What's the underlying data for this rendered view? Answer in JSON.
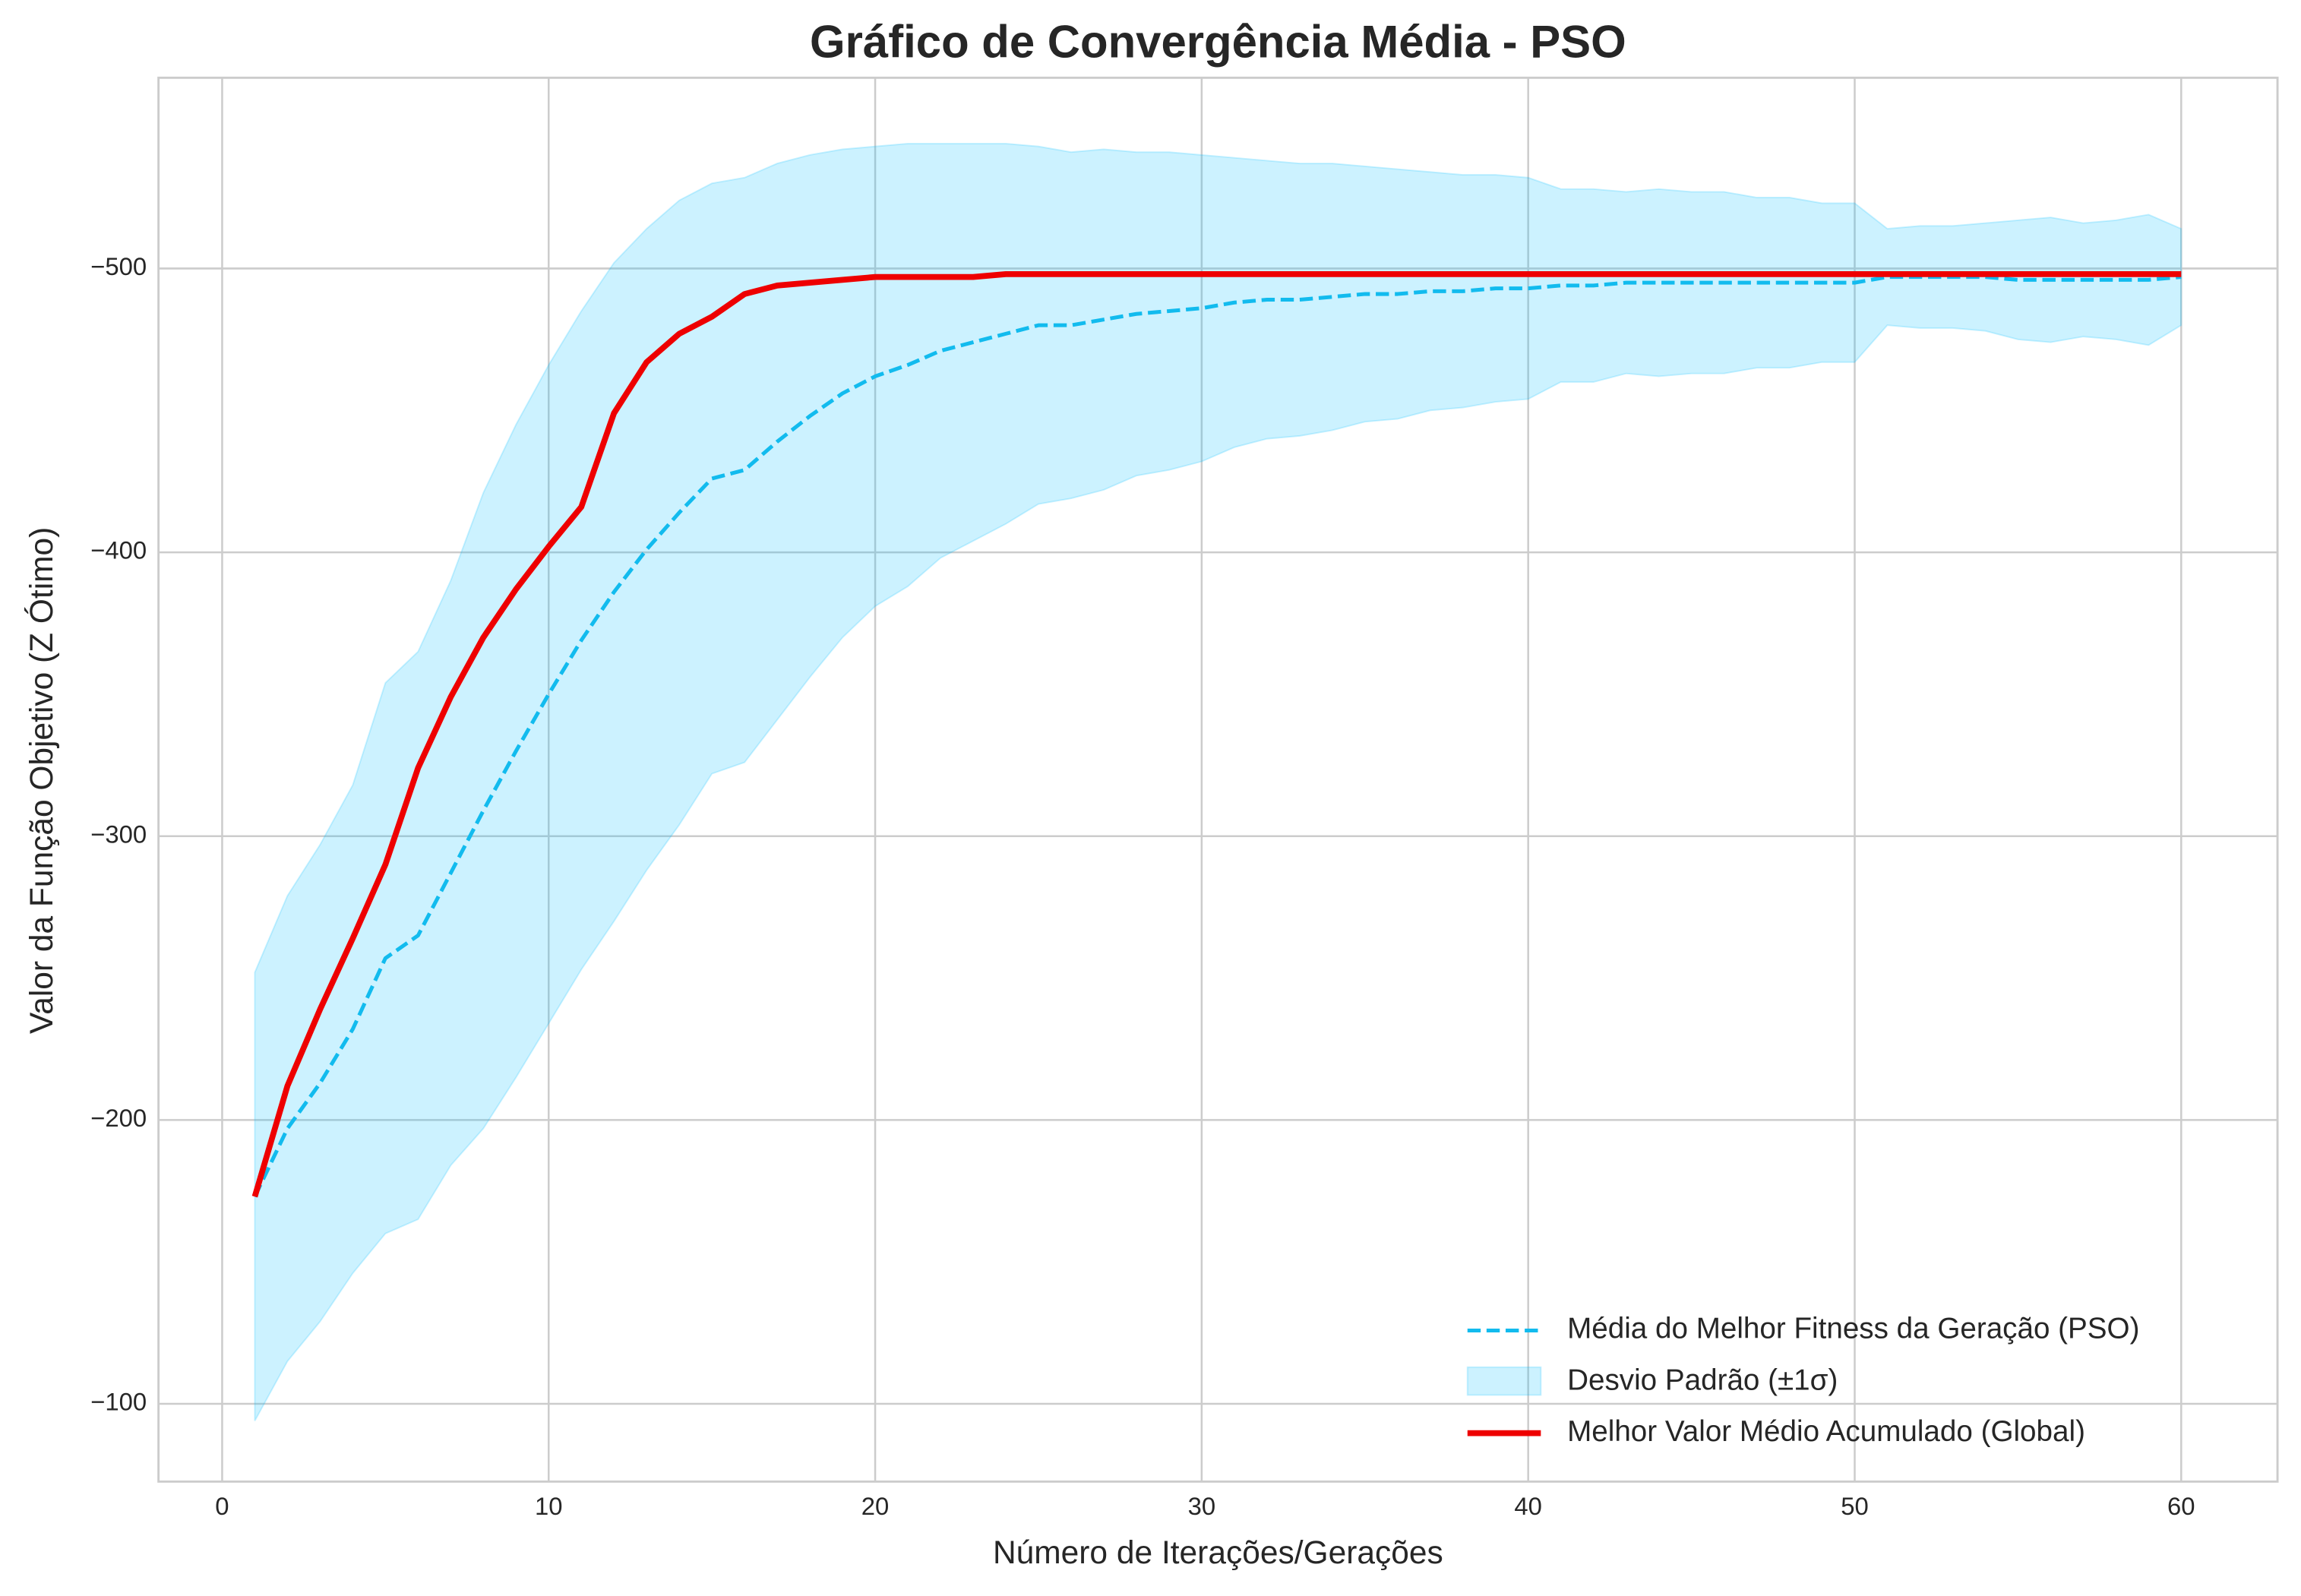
{
  "chart_data": {
    "type": "line",
    "title": "Gráfico de Convergência Média - PSO",
    "x_label": "Número de Iterações/Gerações",
    "y_label": "Valor da Função Objetivo (Z Ótimo)",
    "x": [
      1,
      2,
      3,
      4,
      5,
      6,
      7,
      8,
      9,
      10,
      11,
      12,
      13,
      14,
      15,
      16,
      17,
      18,
      19,
      20,
      21,
      22,
      23,
      24,
      25,
      26,
      27,
      28,
      29,
      30,
      31,
      32,
      33,
      34,
      35,
      36,
      37,
      38,
      39,
      40,
      41,
      42,
      43,
      44,
      45,
      46,
      47,
      48,
      49,
      50,
      51,
      52,
      53,
      54,
      55,
      56,
      57,
      58,
      59,
      60
    ],
    "series": [
      {
        "name": "Média do Melhor Fitness da Geração (PSO)",
        "color": "#12bbee",
        "dashed": true,
        "values": [
          -173,
          -197,
          -213,
          -232,
          -257,
          -265,
          -287,
          -309,
          -330,
          -350,
          -369,
          -386,
          -401,
          -414,
          -426,
          -429,
          -439,
          -448,
          -456,
          -462,
          -466,
          -471,
          -474,
          -477,
          -480,
          -480,
          -482,
          -484,
          -485,
          -486,
          -488,
          -489,
          -489,
          -490,
          -491,
          -491,
          -492,
          -492,
          -493,
          -493,
          -494,
          -494,
          -495,
          -495,
          -495,
          -495,
          -495,
          -495,
          -495,
          -495,
          -497,
          -497,
          -497,
          -497,
          -496,
          -496,
          -496,
          -496,
          -496,
          -497
        ]
      },
      {
        "name": "Desvio Padrão (±1σ)",
        "color": "#00bfff",
        "band": true,
        "values": [
          79,
          82,
          84,
          86,
          97,
          100,
          103,
          112,
          115,
          116,
          116,
          116,
          113,
          110,
          104,
          103,
          98,
          92,
          86,
          81,
          78,
          73,
          70,
          67,
          63,
          61,
          60,
          57,
          56,
          54,
          51,
          49,
          48,
          47,
          45,
          44,
          42,
          41,
          40,
          39,
          34,
          34,
          32,
          33,
          32,
          32,
          30,
          30,
          28,
          28,
          17,
          18,
          18,
          19,
          21,
          22,
          20,
          21,
          23,
          17
        ]
      },
      {
        "name": "Melhor Valor Médio Acumulado (Global)",
        "color": "#ee0000",
        "values": [
          -173,
          -212,
          -239,
          -264,
          -290,
          -324,
          -349,
          -370,
          -387,
          -402,
          -416,
          -449,
          -467,
          -477,
          -483,
          -491,
          -494,
          -495,
          -496,
          -497,
          -497,
          -497,
          -497,
          -498,
          -498,
          -498,
          -498,
          -498,
          -498,
          -498,
          -498,
          -498,
          -498,
          -498,
          -498,
          -498,
          -498,
          -498,
          -498,
          -498,
          -498,
          -498,
          -498,
          -498,
          -498,
          -498,
          -498,
          -498,
          -498,
          -498,
          -498,
          -498,
          -498,
          -498,
          -498,
          -498,
          -498,
          -498,
          -498,
          -498
        ]
      }
    ],
    "xlim": [
      -1.95,
      62.95
    ],
    "xticks": [
      0,
      10,
      20,
      30,
      40,
      50,
      60
    ],
    "ylim": [
      -72.6,
      -567.2
    ],
    "yticks": [
      {
        "value": -500,
        "label": "−500"
      },
      {
        "value": -400,
        "label": "−400"
      },
      {
        "value": -300,
        "label": "−300"
      },
      {
        "value": -200,
        "label": "−200"
      },
      {
        "value": -100,
        "label": "−100"
      }
    ],
    "grid": true,
    "legend": "lower right"
  }
}
